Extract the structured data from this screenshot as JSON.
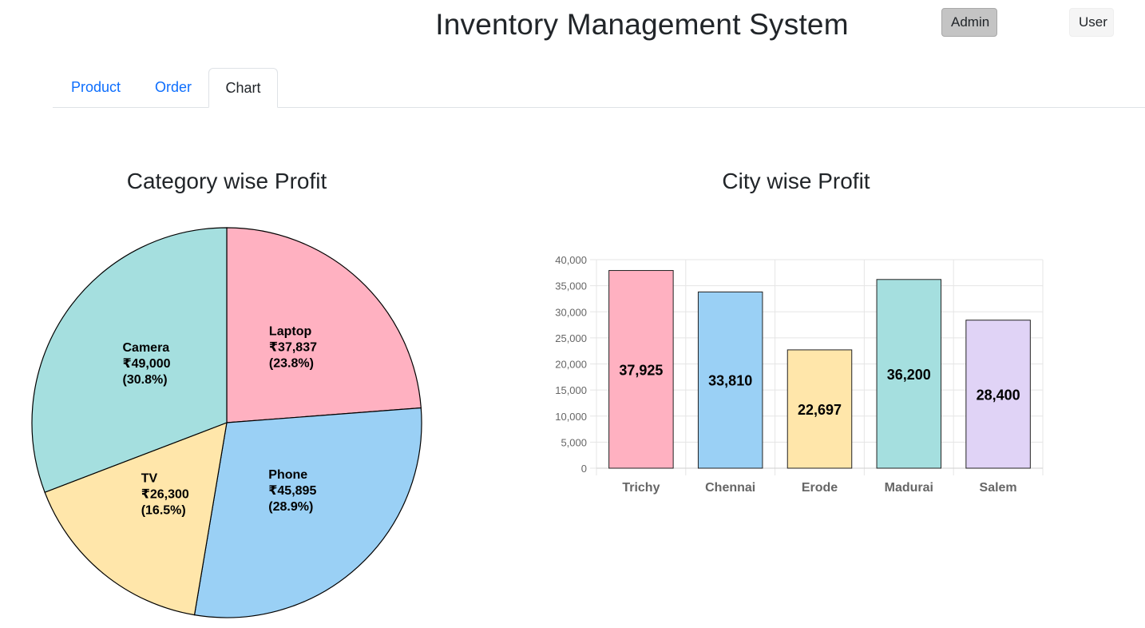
{
  "header": {
    "title": "Inventory Management System",
    "admin_label": "Admin",
    "user_label": "User"
  },
  "tabs": [
    {
      "label": "Product",
      "active": false
    },
    {
      "label": "Order",
      "active": false
    },
    {
      "label": "Chart",
      "active": true
    }
  ],
  "chart_data": [
    {
      "type": "pie",
      "title": "Category wise Profit",
      "currency_symbol": "₹",
      "slices": [
        {
          "label": "Laptop",
          "value": 37837,
          "display_value": "₹37,837",
          "percent": "(23.8%)",
          "color": "#ffb1c1"
        },
        {
          "label": "Phone",
          "value": 45895,
          "display_value": "₹45,895",
          "percent": "(28.9%)",
          "color": "#9ad0f5"
        },
        {
          "label": "TV",
          "value": 26300,
          "display_value": "₹26,300",
          "percent": "(16.5%)",
          "color": "#ffe6aa"
        },
        {
          "label": "Camera",
          "value": 49000,
          "display_value": "₹49,000",
          "percent": "(30.8%)",
          "color": "#a5dfdf"
        }
      ]
    },
    {
      "type": "bar",
      "title": "City wise Profit",
      "categories": [
        "Trichy",
        "Chennai",
        "Erode",
        "Madurai",
        "Salem"
      ],
      "values": [
        37925,
        33810,
        22697,
        36200,
        28400
      ],
      "value_labels": [
        "37,925",
        "33,810",
        "22,697",
        "36,200",
        "28,400"
      ],
      "colors": [
        "#ffb1c1",
        "#9ad0f5",
        "#ffe6aa",
        "#a5dfdf",
        "#e0d3f6"
      ],
      "ylim": [
        0,
        40000
      ],
      "yticks": [
        0,
        5000,
        10000,
        15000,
        20000,
        25000,
        30000,
        35000,
        40000
      ],
      "ytick_labels": [
        "0",
        "5,000",
        "10,000",
        "15,000",
        "20,000",
        "25,000",
        "30,000",
        "35,000",
        "40,000"
      ],
      "grid": true
    }
  ]
}
